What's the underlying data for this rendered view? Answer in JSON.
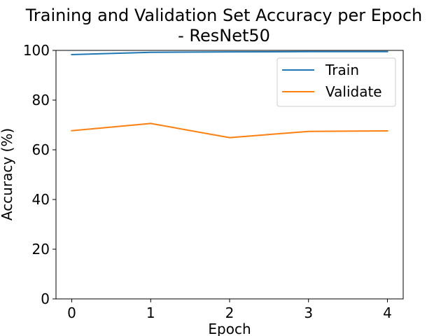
{
  "chart_data": {
    "type": "line",
    "title": "Training and Validation Set Accuracy per Epoch\n- ResNet50",
    "xlabel": "Epoch",
    "ylabel": "Accuracy (%)",
    "x": [
      0,
      1,
      2,
      3,
      4
    ],
    "xlim": [
      -0.2,
      4.2
    ],
    "ylim": [
      0,
      100
    ],
    "xticks": [
      0,
      1,
      2,
      3,
      4
    ],
    "yticks": [
      0,
      20,
      40,
      60,
      80,
      100
    ],
    "grid": false,
    "legend": "upper right",
    "series": [
      {
        "name": "Train",
        "color": "#1f77b4",
        "values": [
          98.3,
          99.2,
          99.4,
          99.5,
          99.5
        ]
      },
      {
        "name": "Validate",
        "color": "#ff7f0e",
        "values": [
          67.7,
          70.6,
          64.9,
          67.4,
          67.6
        ]
      }
    ]
  }
}
